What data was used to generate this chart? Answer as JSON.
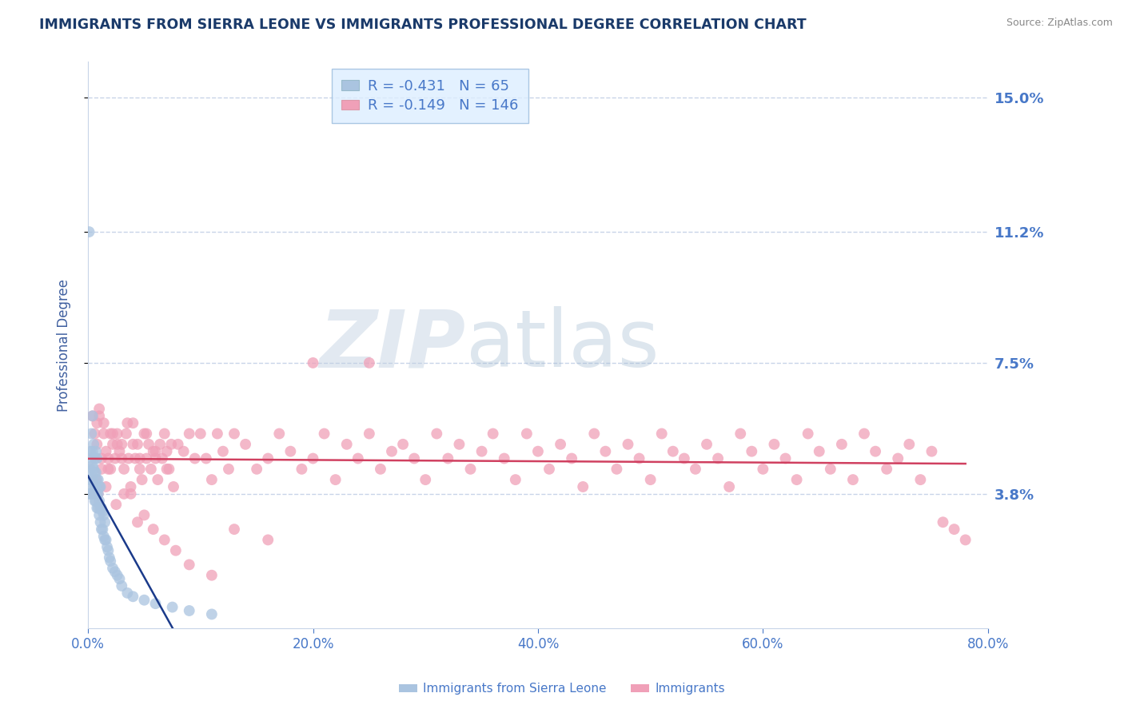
{
  "title": "IMMIGRANTS FROM SIERRA LEONE VS IMMIGRANTS PROFESSIONAL DEGREE CORRELATION CHART",
  "source_text": "Source: ZipAtlas.com",
  "ylabel": "Professional Degree",
  "watermark_zip": "ZIP",
  "watermark_atlas": "atlas",
  "xlim": [
    0.0,
    0.8
  ],
  "ylim": [
    0.0,
    0.16
  ],
  "xtick_labels": [
    "0.0%",
    "20.0%",
    "40.0%",
    "60.0%",
    "80.0%"
  ],
  "xtick_values": [
    0.0,
    0.2,
    0.4,
    0.6,
    0.8
  ],
  "ytick_labels": [
    "3.8%",
    "7.5%",
    "11.2%",
    "15.0%"
  ],
  "ytick_values": [
    0.038,
    0.075,
    0.112,
    0.15
  ],
  "series": [
    {
      "label": "Immigrants from Sierra Leone",
      "R": -0.431,
      "N": 65,
      "color": "#aac4e0",
      "line_color": "#1a3a8a",
      "x": [
        0.001,
        0.001,
        0.002,
        0.002,
        0.002,
        0.003,
        0.003,
        0.003,
        0.003,
        0.004,
        0.004,
        0.004,
        0.004,
        0.004,
        0.005,
        0.005,
        0.005,
        0.005,
        0.006,
        0.006,
        0.006,
        0.006,
        0.007,
        0.007,
        0.007,
        0.007,
        0.008,
        0.008,
        0.008,
        0.008,
        0.009,
        0.009,
        0.009,
        0.01,
        0.01,
        0.01,
        0.011,
        0.011,
        0.011,
        0.012,
        0.012,
        0.013,
        0.013,
        0.014,
        0.014,
        0.015,
        0.015,
        0.016,
        0.017,
        0.018,
        0.019,
        0.02,
        0.022,
        0.024,
        0.026,
        0.028,
        0.03,
        0.035,
        0.04,
        0.05,
        0.06,
        0.075,
        0.09,
        0.11,
        0.001
      ],
      "y": [
        0.038,
        0.042,
        0.038,
        0.045,
        0.05,
        0.038,
        0.042,
        0.048,
        0.055,
        0.038,
        0.042,
        0.046,
        0.05,
        0.06,
        0.038,
        0.04,
        0.045,
        0.052,
        0.036,
        0.04,
        0.044,
        0.048,
        0.036,
        0.04,
        0.044,
        0.05,
        0.034,
        0.038,
        0.042,
        0.048,
        0.034,
        0.038,
        0.042,
        0.032,
        0.036,
        0.04,
        0.03,
        0.034,
        0.04,
        0.028,
        0.034,
        0.028,
        0.033,
        0.026,
        0.032,
        0.025,
        0.03,
        0.025,
        0.023,
        0.022,
        0.02,
        0.019,
        0.017,
        0.016,
        0.015,
        0.014,
        0.012,
        0.01,
        0.009,
        0.008,
        0.007,
        0.006,
        0.005,
        0.004,
        0.112
      ]
    },
    {
      "label": "Immigrants",
      "R": -0.149,
      "N": 146,
      "color": "#f0a0b8",
      "line_color": "#d04060",
      "x": [
        0.004,
        0.006,
        0.008,
        0.01,
        0.012,
        0.014,
        0.016,
        0.018,
        0.02,
        0.022,
        0.024,
        0.026,
        0.028,
        0.03,
        0.032,
        0.034,
        0.036,
        0.038,
        0.04,
        0.042,
        0.044,
        0.046,
        0.048,
        0.05,
        0.052,
        0.054,
        0.056,
        0.058,
        0.06,
        0.062,
        0.064,
        0.066,
        0.068,
        0.07,
        0.072,
        0.074,
        0.076,
        0.08,
        0.085,
        0.09,
        0.095,
        0.1,
        0.105,
        0.11,
        0.115,
        0.12,
        0.125,
        0.13,
        0.14,
        0.15,
        0.16,
        0.17,
        0.18,
        0.19,
        0.2,
        0.21,
        0.22,
        0.23,
        0.24,
        0.25,
        0.26,
        0.27,
        0.28,
        0.29,
        0.3,
        0.31,
        0.32,
        0.33,
        0.34,
        0.35,
        0.36,
        0.37,
        0.38,
        0.39,
        0.4,
        0.41,
        0.42,
        0.43,
        0.44,
        0.45,
        0.46,
        0.47,
        0.48,
        0.49,
        0.5,
        0.51,
        0.52,
        0.53,
        0.54,
        0.55,
        0.56,
        0.57,
        0.58,
        0.59,
        0.6,
        0.61,
        0.62,
        0.63,
        0.64,
        0.65,
        0.66,
        0.67,
        0.68,
        0.69,
        0.7,
        0.71,
        0.72,
        0.73,
        0.74,
        0.75,
        0.76,
        0.77,
        0.78,
        0.008,
        0.01,
        0.014,
        0.018,
        0.022,
        0.026,
        0.03,
        0.035,
        0.04,
        0.046,
        0.052,
        0.06,
        0.07,
        0.005,
        0.007,
        0.009,
        0.012,
        0.016,
        0.02,
        0.025,
        0.032,
        0.038,
        0.044,
        0.05,
        0.058,
        0.068,
        0.078,
        0.09,
        0.11,
        0.13,
        0.16,
        0.2,
        0.25
      ],
      "y": [
        0.06,
        0.055,
        0.052,
        0.06,
        0.048,
        0.058,
        0.05,
        0.045,
        0.055,
        0.052,
        0.048,
        0.055,
        0.05,
        0.052,
        0.045,
        0.055,
        0.048,
        0.04,
        0.058,
        0.048,
        0.052,
        0.045,
        0.042,
        0.055,
        0.048,
        0.052,
        0.045,
        0.05,
        0.048,
        0.042,
        0.052,
        0.048,
        0.055,
        0.05,
        0.045,
        0.052,
        0.04,
        0.052,
        0.05,
        0.055,
        0.048,
        0.055,
        0.048,
        0.042,
        0.055,
        0.05,
        0.045,
        0.055,
        0.052,
        0.045,
        0.048,
        0.055,
        0.05,
        0.045,
        0.048,
        0.055,
        0.042,
        0.052,
        0.048,
        0.055,
        0.045,
        0.05,
        0.052,
        0.048,
        0.042,
        0.055,
        0.048,
        0.052,
        0.045,
        0.05,
        0.055,
        0.048,
        0.042,
        0.055,
        0.05,
        0.045,
        0.052,
        0.048,
        0.04,
        0.055,
        0.05,
        0.045,
        0.052,
        0.048,
        0.042,
        0.055,
        0.05,
        0.048,
        0.045,
        0.052,
        0.048,
        0.04,
        0.055,
        0.05,
        0.045,
        0.052,
        0.048,
        0.042,
        0.055,
        0.05,
        0.045,
        0.052,
        0.042,
        0.055,
        0.05,
        0.045,
        0.048,
        0.052,
        0.042,
        0.05,
        0.03,
        0.028,
        0.025,
        0.058,
        0.062,
        0.055,
        0.048,
        0.055,
        0.052,
        0.048,
        0.058,
        0.052,
        0.048,
        0.055,
        0.05,
        0.045,
        0.038,
        0.042,
        0.038,
        0.045,
        0.04,
        0.045,
        0.035,
        0.038,
        0.038,
        0.03,
        0.032,
        0.028,
        0.025,
        0.022,
        0.018,
        0.015,
        0.028,
        0.025,
        0.075,
        0.075
      ]
    }
  ],
  "legend_box_color": "#ddeeff",
  "legend_border_color": "#99bbdd",
  "grid_color": "#c8d4e8",
  "background_color": "#ffffff",
  "title_color": "#1a3a6a",
  "axis_label_color": "#4060a0",
  "tick_label_color": "#4878c8",
  "source_color": "#888888"
}
